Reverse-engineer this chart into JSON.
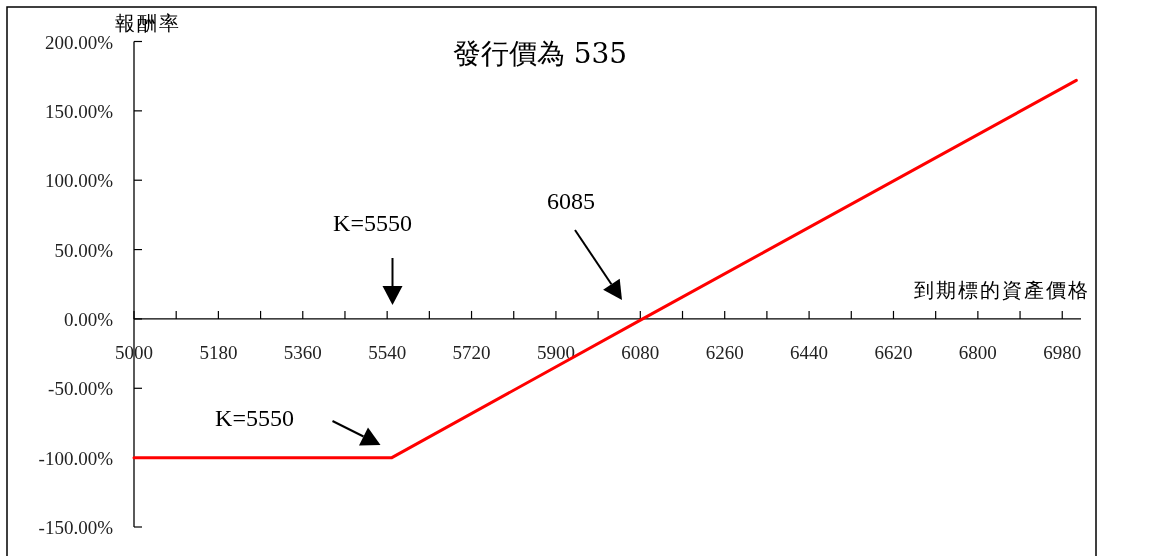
{
  "chart_data": {
    "type": "line",
    "title": "發行價為 535",
    "xlabel": "到期標的資產價格",
    "ylabel": "報酬率",
    "x": [
      5000,
      5550,
      6085,
      7010
    ],
    "series": [
      {
        "color": "#ff0000",
        "values": [
          -100,
          -100,
          0,
          172
        ]
      }
    ],
    "xlim": [
      5000,
      7020
    ],
    "ylim": [
      -150,
      200
    ],
    "xticks": [
      5000,
      {
        "value": 5090,
        "label": null
      },
      5180,
      {
        "value": 5270,
        "label": null
      },
      5360,
      {
        "value": 5450,
        "label": null
      },
      5540,
      {
        "value": 5630,
        "label": null
      },
      5720,
      {
        "value": 5810,
        "label": null
      },
      5900,
      {
        "value": 5990,
        "label": null
      },
      6080,
      {
        "value": 6170,
        "label": null
      },
      6260,
      {
        "value": 6350,
        "label": null
      },
      6440,
      {
        "value": 6530,
        "label": null
      },
      6620,
      {
        "value": 6710,
        "label": null
      },
      6800,
      {
        "value": 6890,
        "label": null
      },
      6980
    ],
    "yticks": [
      {
        "value": -150,
        "label": "-150.00%"
      },
      {
        "value": -100,
        "label": "-100.00%"
      },
      {
        "value": -50,
        "label": "-50.00%"
      },
      {
        "value": 0,
        "label": "0.00%"
      },
      {
        "value": 50,
        "label": "50.00%"
      },
      {
        "value": 100,
        "label": "100.00%"
      },
      {
        "value": 150,
        "label": "150.00%"
      },
      {
        "value": 200,
        "label": "200.00%"
      }
    ],
    "annotations": [
      "K=5550",
      "6085",
      "K=5550"
    ]
  }
}
